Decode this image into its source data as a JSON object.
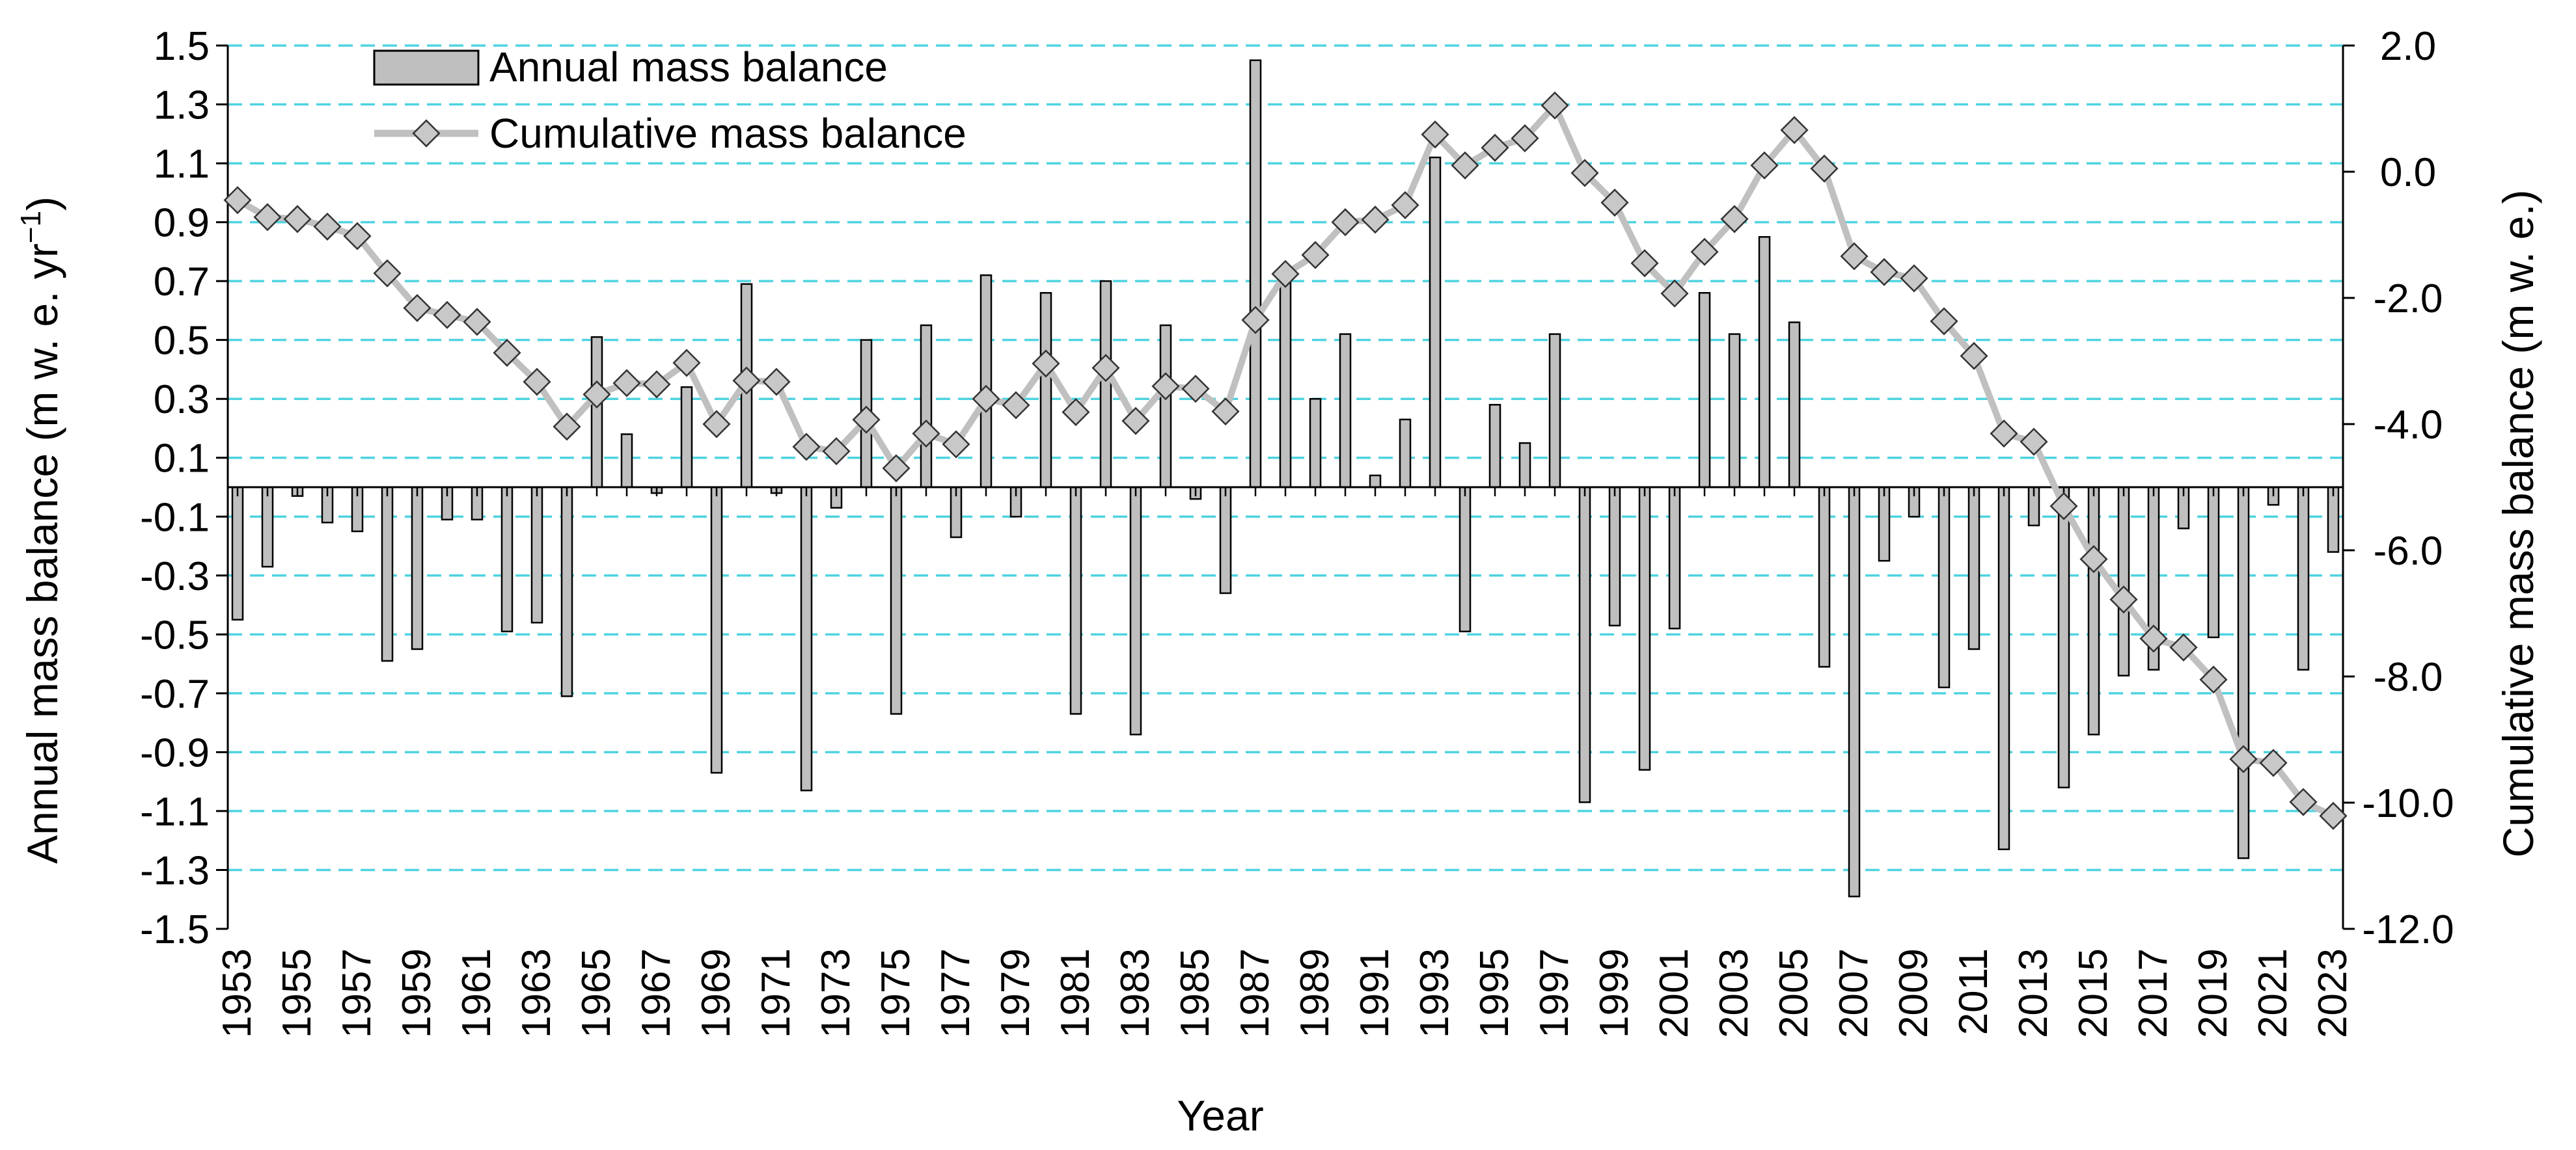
{
  "chart_data": {
    "type": "bar+line",
    "title": "",
    "xlabel": "Year",
    "ylabel_left": "Annual mass balance (m  w. e.  yr",
    "ylabel_left_sup": "−1",
    "ylabel_left_close": ")",
    "ylabel_right": "Cumulative mass balance (m w. e.)",
    "ylim_left": [
      -1.5,
      1.5
    ],
    "ylim_right": [
      -12.0,
      2.0
    ],
    "gridlines": "horizontal dashed",
    "legend_position": "top-left",
    "y_ticks_left": [
      "1.5",
      "1.3",
      "1.1",
      "0.9",
      "0.7",
      "0.5",
      "0.3",
      "0.1",
      "-0.1",
      "-0.3",
      "-0.5",
      "-0.7",
      "-0.9",
      "-1.1",
      "-1.3",
      "-1.5"
    ],
    "y_ticks_right": [
      "2.0",
      "0.0",
      "-2.0",
      "-4.0",
      "-6.0",
      "-8.0",
      "-10.0",
      "-12.0"
    ],
    "x_ticks": [
      "1953",
      "1955",
      "1957",
      "1959",
      "1961",
      "1963",
      "1965",
      "1967",
      "1969",
      "1971",
      "1973",
      "1975",
      "1977",
      "1979",
      "1981",
      "1983",
      "1985",
      "1987",
      "1989",
      "1991",
      "1993",
      "1995",
      "1997",
      "1999",
      "2001",
      "2003",
      "2005",
      "2007",
      "2009",
      "2011",
      "2013",
      "2015",
      "2017",
      "2019",
      "2021",
      "2023"
    ],
    "years": [
      1953,
      1954,
      1955,
      1956,
      1957,
      1958,
      1959,
      1960,
      1961,
      1962,
      1963,
      1964,
      1965,
      1966,
      1967,
      1968,
      1969,
      1970,
      1971,
      1972,
      1973,
      1974,
      1975,
      1976,
      1977,
      1978,
      1979,
      1980,
      1981,
      1982,
      1983,
      1984,
      1985,
      1986,
      1987,
      1988,
      1989,
      1990,
      1991,
      1992,
      1993,
      1994,
      1995,
      1996,
      1997,
      1998,
      1999,
      2000,
      2001,
      2002,
      2003,
      2004,
      2005,
      2006,
      2007,
      2008,
      2009,
      2010,
      2011,
      2012,
      2013,
      2014,
      2015,
      2016,
      2017,
      2018,
      2019,
      2020,
      2021,
      2022,
      2023
    ],
    "series": [
      {
        "name": "Annual mass balance",
        "axis": "left",
        "style": "bar",
        "color": "#bfbfbf",
        "values": [
          -0.45,
          -0.27,
          -0.03,
          -0.12,
          -0.15,
          -0.59,
          -0.55,
          -0.11,
          -0.11,
          -0.49,
          -0.46,
          -0.71,
          0.51,
          0.18,
          -0.02,
          0.34,
          -0.97,
          0.69,
          -0.02,
          -1.03,
          -0.07,
          0.5,
          -0.77,
          0.55,
          -0.17,
          0.72,
          -0.1,
          0.66,
          -0.77,
          0.7,
          -0.84,
          0.55,
          -0.04,
          -0.36,
          1.45,
          0.73,
          0.3,
          0.52,
          0.04,
          0.23,
          1.12,
          -0.49,
          0.28,
          0.15,
          0.52,
          -1.07,
          -0.47,
          -0.96,
          -0.48,
          0.66,
          0.52,
          0.85,
          0.56,
          -0.61,
          -1.39,
          -0.25,
          -0.1,
          -0.68,
          -0.55,
          -1.23,
          -0.13,
          -1.02,
          -0.84,
          -0.64,
          -0.62,
          -0.14,
          -0.51,
          -1.26,
          -0.06,
          -0.62,
          -0.22
        ]
      },
      {
        "name": "Cumulative mass balance",
        "axis": "right",
        "style": "line-marker",
        "color": "#c0c0c0",
        "values": [
          -0.45,
          -0.72,
          -0.75,
          -0.87,
          -1.02,
          -1.61,
          -2.16,
          -2.27,
          -2.38,
          -2.87,
          -3.33,
          -4.04,
          -3.53,
          -3.35,
          -3.37,
          -3.03,
          -4.0,
          -3.31,
          -3.33,
          -4.36,
          -4.43,
          -3.93,
          -4.7,
          -4.15,
          -4.32,
          -3.6,
          -3.7,
          -3.04,
          -3.81,
          -3.11,
          -3.95,
          -3.4,
          -3.44,
          -3.8,
          -2.35,
          -1.62,
          -1.32,
          -0.8,
          -0.76,
          -0.53,
          0.59,
          0.1,
          0.38,
          0.53,
          1.05,
          -0.02,
          -0.49,
          -1.45,
          -1.93,
          -1.27,
          -0.75,
          0.1,
          0.66,
          0.05,
          -1.34,
          -1.59,
          -1.69,
          -2.37,
          -2.92,
          -4.15,
          -4.28,
          -5.3,
          -6.14,
          -6.78,
          -7.4,
          -7.54,
          -8.05,
          -9.31,
          -9.37,
          -9.99,
          -10.21
        ]
      }
    ]
  }
}
